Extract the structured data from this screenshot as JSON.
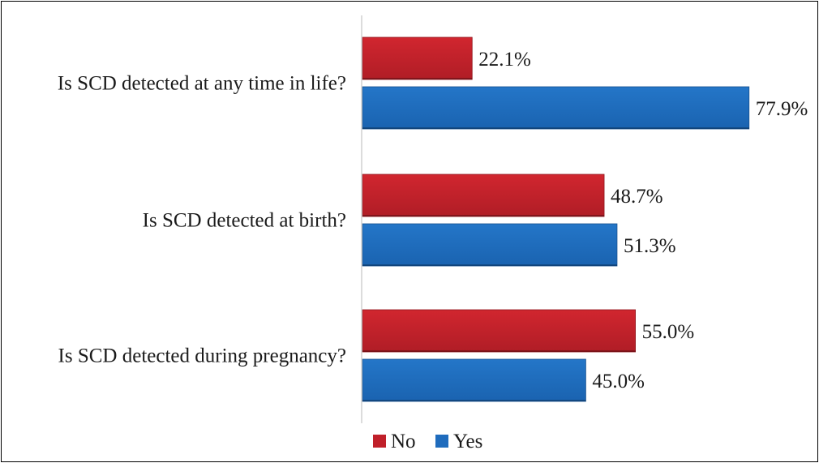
{
  "chart_data": {
    "type": "bar",
    "orientation": "horizontal",
    "title": "",
    "xlabel": "",
    "ylabel": "",
    "categories": [
      "Is SCD detected at any time in life?",
      "Is SCD detected at birth?",
      "Is SCD detected during pregnancy?"
    ],
    "series": [
      {
        "name": "No",
        "color": "#c0202a",
        "values": [
          22.1,
          48.7,
          55.0
        ],
        "labels": [
          "22.1%",
          "48.7%",
          "55.0%"
        ]
      },
      {
        "name": "Yes",
        "color": "#1f6cbd",
        "values": [
          77.9,
          51.3,
          45.0
        ],
        "labels": [
          "77.9%",
          "51.3%",
          "45.0%"
        ]
      }
    ],
    "xlim": [
      0,
      100
    ],
    "grid": false,
    "legend": "bottom"
  }
}
